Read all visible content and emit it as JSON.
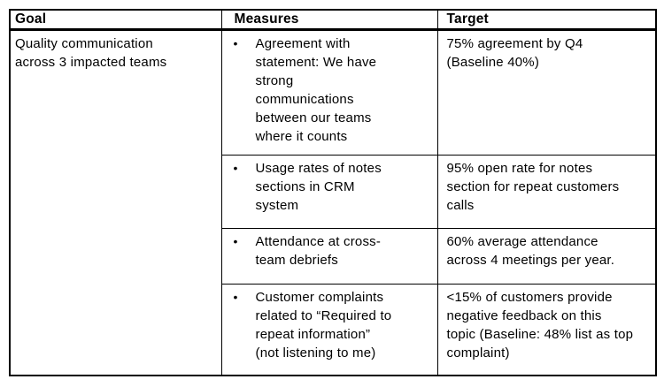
{
  "page": {
    "background": "#ffffff",
    "border_color": "#000000",
    "text_color": "#000000"
  },
  "table": {
    "bullet": "•",
    "columns": [
      {
        "label": "Goal"
      },
      {
        "label": "Measures"
      },
      {
        "label": "Target"
      }
    ],
    "goal": "Quality communication across 3 impacted teams",
    "rows": [
      {
        "measure": "Agreement with statement: We have strong communications between our teams where it counts",
        "target": "75% agreement by Q4 (Baseline 40%)"
      },
      {
        "measure": "Usage rates of notes sections in CRM system",
        "target": "95% open rate for notes section for repeat customers calls"
      },
      {
        "measure": "Attendance at cross-team debriefs",
        "target": "60% average attendance across 4 meetings per year."
      },
      {
        "measure": "Customer complaints related to “Required to repeat information” (not listening to me)",
        "target": "<15% of customers provide negative feedback on this topic (Baseline: 48% list as top complaint)"
      }
    ]
  }
}
